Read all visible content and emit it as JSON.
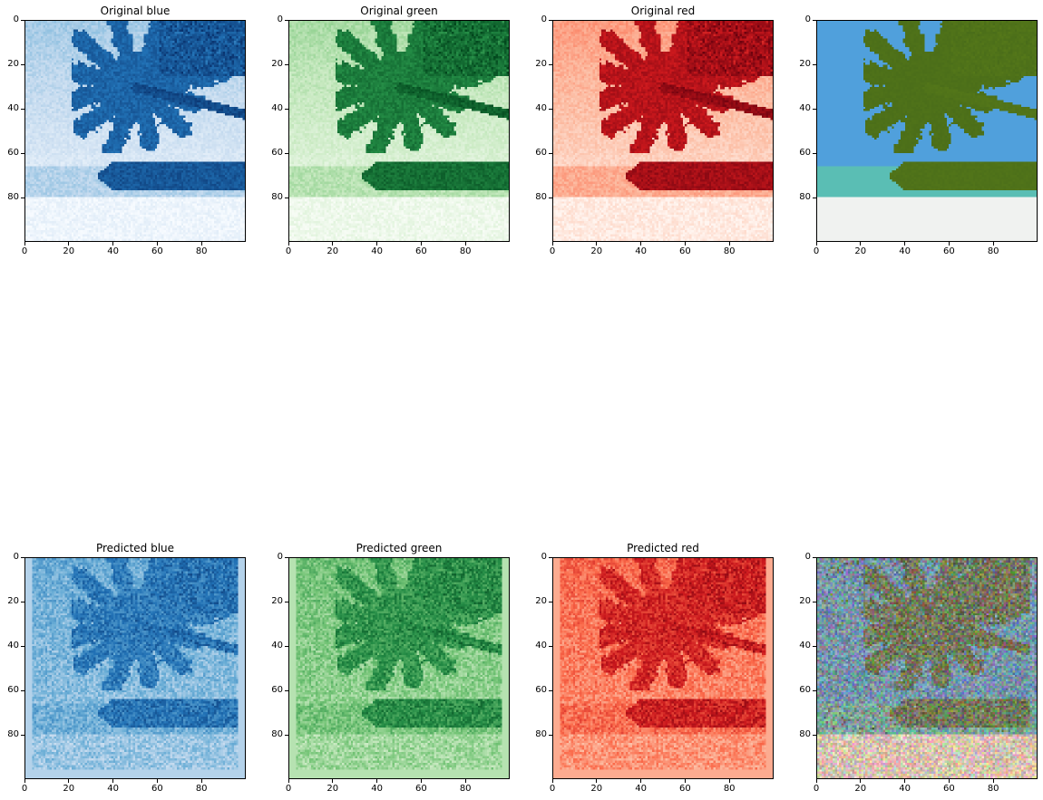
{
  "chart_data": [
    {
      "type": "heatmap",
      "title": "Original blue",
      "xlabel": "",
      "ylabel": "",
      "colormap": "Blues",
      "image_size": [
        100,
        100
      ],
      "x_ticks": [
        0,
        20,
        40,
        60,
        80
      ],
      "y_ticks": [
        0,
        20,
        40,
        60,
        80
      ],
      "xlim": [
        0,
        100
      ],
      "ylim": [
        100,
        0
      ],
      "grid": false
    },
    {
      "type": "heatmap",
      "title": "Original green",
      "xlabel": "",
      "ylabel": "",
      "colormap": "Greens",
      "image_size": [
        100,
        100
      ],
      "x_ticks": [
        0,
        20,
        40,
        60,
        80
      ],
      "y_ticks": [
        0,
        20,
        40,
        60,
        80
      ],
      "xlim": [
        0,
        100
      ],
      "ylim": [
        100,
        0
      ],
      "grid": false
    },
    {
      "type": "heatmap",
      "title": "Original red",
      "xlabel": "",
      "ylabel": "",
      "colormap": "Reds",
      "image_size": [
        100,
        100
      ],
      "x_ticks": [
        0,
        20,
        40,
        60,
        80
      ],
      "y_ticks": [
        0,
        20,
        40,
        60,
        80
      ],
      "xlim": [
        0,
        100
      ],
      "ylim": [
        100,
        0
      ],
      "grid": false
    },
    {
      "type": "heatmap",
      "title": "",
      "xlabel": "",
      "ylabel": "",
      "colormap": "rgb",
      "image_size": [
        100,
        100
      ],
      "x_ticks": [
        0,
        20,
        40,
        60,
        80
      ],
      "y_ticks": [
        0,
        20,
        40,
        60,
        80
      ],
      "xlim": [
        0,
        100
      ],
      "ylim": [
        100,
        0
      ],
      "grid": false
    },
    {
      "type": "heatmap",
      "title": "Predicted blue",
      "xlabel": "",
      "ylabel": "",
      "colormap": "Blues",
      "image_size": [
        100,
        100
      ],
      "x_ticks": [
        0,
        20,
        40,
        60,
        80
      ],
      "y_ticks": [
        0,
        20,
        40,
        60,
        80
      ],
      "xlim": [
        0,
        100
      ],
      "ylim": [
        100,
        0
      ],
      "grid": false
    },
    {
      "type": "heatmap",
      "title": "Predicted green",
      "xlabel": "",
      "ylabel": "",
      "colormap": "Greens",
      "image_size": [
        100,
        100
      ],
      "x_ticks": [
        0,
        20,
        40,
        60,
        80
      ],
      "y_ticks": [
        0,
        20,
        40,
        60,
        80
      ],
      "xlim": [
        0,
        100
      ],
      "ylim": [
        100,
        0
      ],
      "grid": false
    },
    {
      "type": "heatmap",
      "title": "Predicted red",
      "xlabel": "",
      "ylabel": "",
      "colormap": "Reds",
      "image_size": [
        100,
        100
      ],
      "x_ticks": [
        0,
        20,
        40,
        60,
        80
      ],
      "y_ticks": [
        0,
        20,
        40,
        60,
        80
      ],
      "xlim": [
        0,
        100
      ],
      "ylim": [
        100,
        0
      ],
      "grid": false
    },
    {
      "type": "heatmap",
      "title": "",
      "xlabel": "",
      "ylabel": "",
      "colormap": "rgb",
      "image_size": [
        100,
        100
      ],
      "x_ticks": [
        0,
        20,
        40,
        60,
        80
      ],
      "y_ticks": [
        0,
        20,
        40,
        60,
        80
      ],
      "xlim": [
        0,
        100
      ],
      "ylim": [
        100,
        0
      ],
      "grid": false
    }
  ]
}
